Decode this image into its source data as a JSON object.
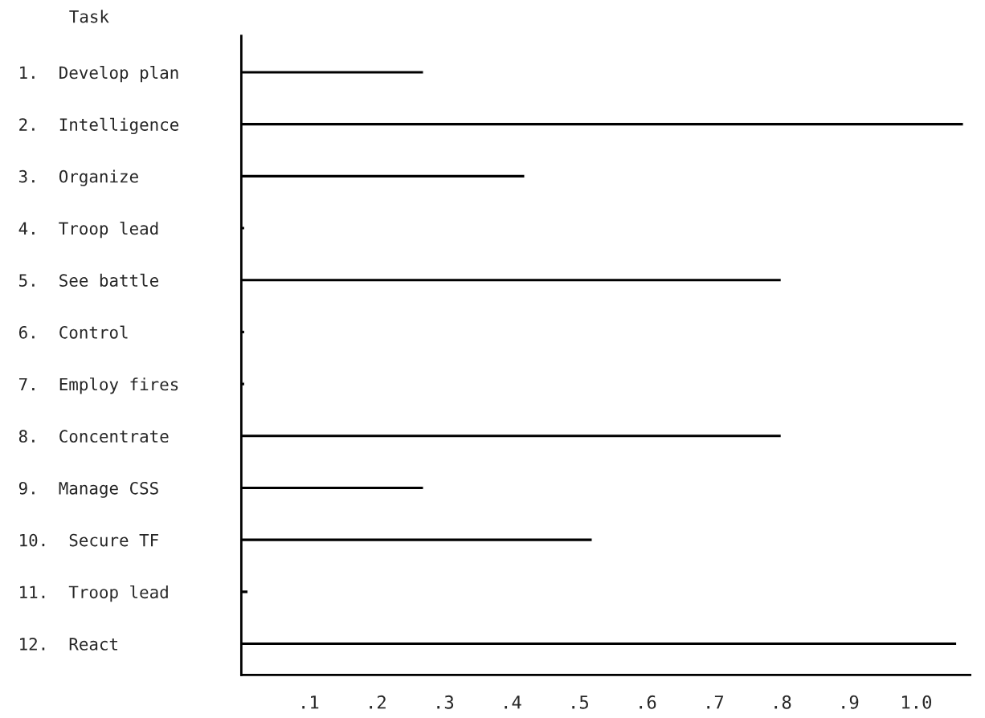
{
  "chart_data": {
    "type": "bar",
    "orientation": "horizontal",
    "ylabel": "Task",
    "categories": [
      "1.  Develop plan",
      "2.  Intelligence",
      "3.  Organize",
      "4.  Troop lead",
      "5.  See battle",
      "6.  Control",
      "7.  Employ fires",
      "8.  Concentrate",
      "9.  Manage CSS",
      "10.  Secure TF",
      "11.  Troop lead",
      "12.  React"
    ],
    "values": [
      0.27,
      1.07,
      0.42,
      0.005,
      0.8,
      0.005,
      0.005,
      0.8,
      0.27,
      0.52,
      0.01,
      1.06
    ],
    "color": "#000000",
    "xlim": [
      0,
      1.08
    ],
    "xticks": [
      {
        "value": 0.1,
        "label": ".1"
      },
      {
        "value": 0.2,
        "label": ".2"
      },
      {
        "value": 0.3,
        "label": ".3"
      },
      {
        "value": 0.4,
        "label": ".4"
      },
      {
        "value": 0.5,
        "label": ".5"
      },
      {
        "value": 0.6,
        "label": ".6"
      },
      {
        "value": 0.7,
        "label": ".7"
      },
      {
        "value": 0.8,
        "label": ".8"
      },
      {
        "value": 0.9,
        "label": ".9"
      },
      {
        "value": 1.0,
        "label": "1.0"
      }
    ],
    "grid": false
  }
}
